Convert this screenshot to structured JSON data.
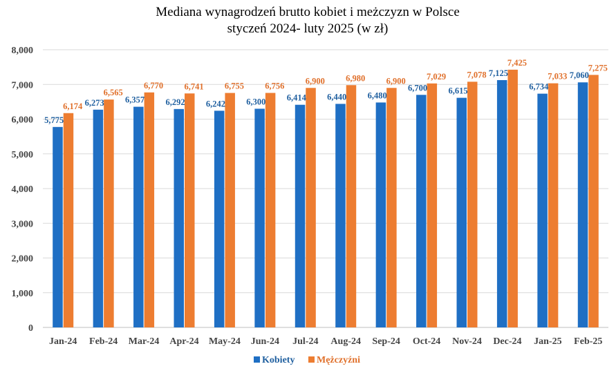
{
  "chart_data": {
    "type": "bar",
    "title_line1": "Mediana wynagrodzeń brutto kobiet i meżczyzn w Polsce",
    "title_line2": "styczeń 2024- luty 2025 (w zł)",
    "categories": [
      "Jan-24",
      "Feb-24",
      "Mar-24",
      "Apr-24",
      "May-24",
      "Jun-24",
      "Jul-24",
      "Aug-24",
      "Sep-24",
      "Oct-24",
      "Nov-24",
      "Dec-24",
      "Jan-25",
      "Feb-25"
    ],
    "series": [
      {
        "name": "Kobiety",
        "color": "#1f6fc4",
        "label_color": "#1f5f9f",
        "values": [
          5775,
          6273,
          6357,
          6292,
          6242,
          6300,
          6414,
          6440,
          6480,
          6700,
          6615,
          7125,
          6734,
          7060
        ],
        "labels": [
          "5,775",
          "6,273",
          "6,357",
          "6,292",
          "6,242",
          "6,300",
          "6,414",
          "6,440",
          "6,480",
          "6,700",
          "6,615",
          "7,125",
          "6,734",
          "7,060"
        ]
      },
      {
        "name": "Mężczyźni",
        "color": "#ed7d31",
        "label_color": "#e0702b",
        "values": [
          6174,
          6565,
          6770,
          6741,
          6755,
          6756,
          6900,
          6980,
          6900,
          7029,
          7078,
          7425,
          7033,
          7275
        ],
        "labels": [
          "6,174",
          "6,565",
          "6,770",
          "6,741",
          "6,755",
          "6,756",
          "6,900",
          "6,980",
          "6,900",
          "7,029",
          "7,078",
          "7,425",
          "7,033",
          "7,275"
        ]
      }
    ],
    "ylim": [
      0,
      8000
    ],
    "yticks": [
      0,
      1000,
      2000,
      3000,
      4000,
      5000,
      6000,
      7000,
      8000
    ],
    "ytick_labels": [
      "0",
      "1,000",
      "2,000",
      "3,000",
      "4,000",
      "5,000",
      "6,000",
      "7,000",
      "8,000"
    ],
    "xlabel": "",
    "ylabel": "",
    "grid": true,
    "legend_position": "bottom-center"
  }
}
